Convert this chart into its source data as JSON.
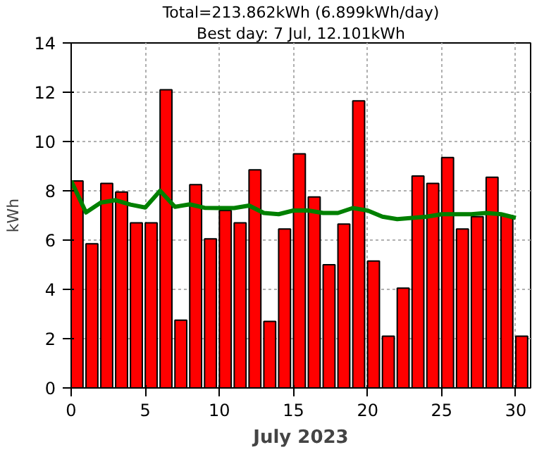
{
  "chart_data": {
    "type": "bar",
    "title": "Total=213.862kWh (6.899kWh/day)",
    "subtitle": "Best day: 7 Jul, 12.101kWh",
    "xlabel": "July 2023",
    "ylabel": "kWh",
    "series": [
      {
        "color": "#ff0000",
        "x": [
          0.4,
          1.4,
          2.4,
          3.4,
          4.4,
          5.4,
          6.4,
          7.4,
          8.4,
          9.4,
          10.4,
          11.4,
          12.4,
          13.4,
          14.4,
          15.4,
          16.4,
          17.4,
          18.4,
          19.4,
          20.4,
          21.4,
          22.4,
          23.4,
          24.4,
          25.4,
          26.4,
          27.4,
          28.4,
          29.4,
          30.4
        ],
        "values": [
          8.4,
          5.85,
          8.3,
          7.95,
          6.7,
          6.7,
          12.1,
          2.75,
          8.25,
          6.05,
          7.2,
          6.7,
          8.85,
          2.7,
          6.45,
          9.5,
          7.75,
          5.0,
          6.65,
          11.65,
          5.15,
          2.1,
          4.05,
          8.6,
          8.3,
          9.35,
          6.45,
          6.95,
          8.55,
          7.0,
          2.1
        ]
      },
      {
        "type": "line",
        "color": "#008000",
        "x": [
          0,
          1,
          2,
          3,
          4,
          5,
          6,
          7,
          8,
          9,
          10,
          11,
          12,
          13,
          14,
          15,
          16,
          17,
          18,
          19,
          20,
          21,
          22,
          23,
          24,
          25,
          26,
          27,
          28,
          29,
          30
        ],
        "values": [
          8.4,
          7.12,
          7.52,
          7.62,
          7.44,
          7.32,
          8.0,
          7.35,
          7.45,
          7.31,
          7.3,
          7.3,
          7.4,
          7.1,
          7.05,
          7.2,
          7.2,
          7.1,
          7.1,
          7.3,
          7.2,
          6.95,
          6.85,
          6.9,
          6.95,
          7.05,
          7.05,
          7.05,
          7.1,
          7.05,
          6.9
        ]
      }
    ],
    "xlim": [
      0,
      31
    ],
    "ylim": [
      0,
      14
    ],
    "xticks": [
      0,
      5,
      10,
      15,
      20,
      25,
      30
    ],
    "yticks": [
      0,
      2,
      4,
      6,
      8,
      10,
      12,
      14
    ],
    "grid": true
  }
}
